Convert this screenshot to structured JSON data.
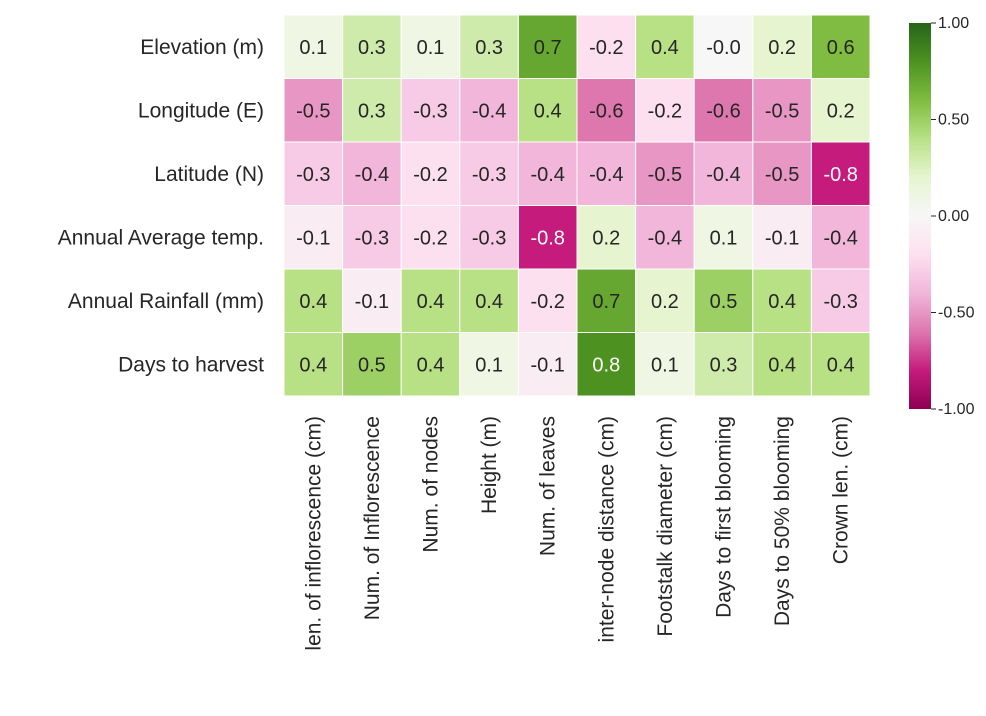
{
  "chart_data": {
    "type": "heatmap",
    "title": "",
    "xlabel": "",
    "ylabel": "",
    "rows": [
      "Elevation (m)",
      "Longitude (E)",
      "Latitude (N)",
      "Annual Average temp.",
      "Annual Rainfall (mm)",
      "Days to harvest"
    ],
    "columns": [
      "len. of inflorescence (cm)",
      "Num. of Inflorescence",
      "Num. of nodes",
      "Height (m)",
      "Num. of leaves",
      "inter-node distance (cm)",
      "Footstalk diameter (cm)",
      "Days to first blooming",
      "Days to 50% blooming",
      "Crown len. (cm)"
    ],
    "values": [
      [
        0.1,
        0.3,
        0.1,
        0.3,
        0.7,
        -0.2,
        0.4,
        -0.0,
        0.2,
        0.6
      ],
      [
        -0.5,
        0.3,
        -0.3,
        -0.4,
        0.4,
        -0.6,
        -0.2,
        -0.6,
        -0.5,
        0.2
      ],
      [
        -0.3,
        -0.4,
        -0.2,
        -0.3,
        -0.4,
        -0.4,
        -0.5,
        -0.4,
        -0.5,
        -0.8
      ],
      [
        -0.1,
        -0.3,
        -0.2,
        -0.3,
        -0.8,
        0.2,
        -0.4,
        0.1,
        -0.1,
        -0.4
      ],
      [
        0.4,
        -0.1,
        0.4,
        0.4,
        -0.2,
        0.7,
        0.2,
        0.5,
        0.4,
        -0.3
      ],
      [
        0.4,
        0.5,
        0.4,
        0.1,
        -0.1,
        0.8,
        0.1,
        0.3,
        0.4,
        0.4
      ]
    ],
    "value_labels": [
      [
        "0.1",
        "0.3",
        "0.1",
        "0.3",
        "0.7",
        "-0.2",
        "0.4",
        "-0.0",
        "0.2",
        "0.6"
      ],
      [
        "-0.5",
        "0.3",
        "-0.3",
        "-0.4",
        "0.4",
        "-0.6",
        "-0.2",
        "-0.6",
        "-0.5",
        "0.2"
      ],
      [
        "-0.3",
        "-0.4",
        "-0.2",
        "-0.3",
        "-0.4",
        "-0.4",
        "-0.5",
        "-0.4",
        "-0.5",
        "-0.8"
      ],
      [
        "-0.1",
        "-0.3",
        "-0.2",
        "-0.3",
        "-0.8",
        "0.2",
        "-0.4",
        "0.1",
        "-0.1",
        "-0.4"
      ],
      [
        "0.4",
        "-0.1",
        "0.4",
        "0.4",
        "-0.2",
        "0.7",
        "0.2",
        "0.5",
        "0.4",
        "-0.3"
      ],
      [
        "0.4",
        "0.5",
        "0.4",
        "0.1",
        "-0.1",
        "0.8",
        "0.1",
        "0.3",
        "0.4",
        "0.4"
      ]
    ],
    "colorbar": {
      "min": -1.0,
      "max": 1.0,
      "ticks": [
        1.0,
        0.5,
        0.0,
        -0.5,
        -1.0
      ],
      "tick_labels": [
        "1.00",
        "0.50",
        "0.00",
        "-0.50",
        "-1.00"
      ],
      "placement": "right"
    },
    "colormap": {
      "name": "PiYG",
      "stops": [
        "#8e0152",
        "#c51b7d",
        "#de77ae",
        "#f1b6da",
        "#fde0ef",
        "#f7f7f7",
        "#e6f5d0",
        "#b8e186",
        "#7fbc41",
        "#4d9221",
        "#276419"
      ]
    },
    "grid": true,
    "cell_border_color": "#ffffff"
  }
}
